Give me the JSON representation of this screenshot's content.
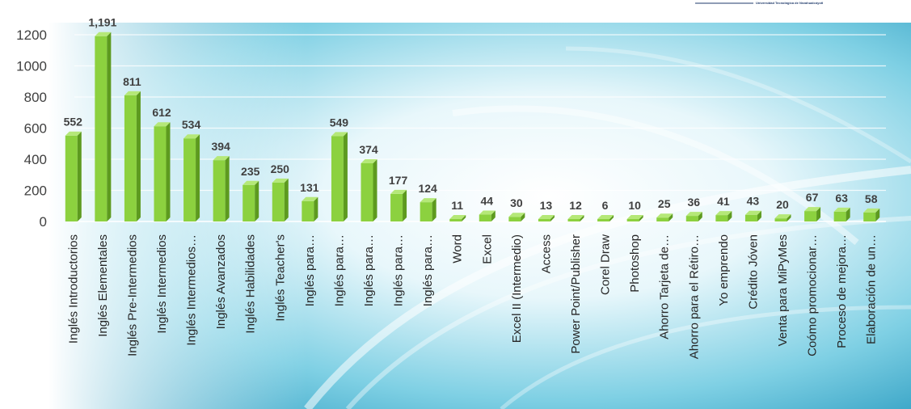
{
  "chart_data": {
    "type": "bar",
    "title": "",
    "xlabel": "",
    "ylabel": "",
    "ylim": [
      0,
      1200
    ],
    "yticks": [
      0,
      200,
      400,
      600,
      800,
      1000,
      1200
    ],
    "grid": true,
    "legend": "none",
    "bar_color": "#8cd13f",
    "categories": [
      "Inglés Introductorios",
      "Inglés Elementales",
      "Inglés Pre-Intermedios",
      "Inglés Intermedios",
      "Inglés Intermedios…",
      "Inglés Avanzados",
      "Inglés Habilidades",
      "Inglés Teacher's",
      "Inglés para…",
      "Inglés para…",
      "Inglés para…",
      "Inglés para…",
      "Inglés para…",
      "Word",
      "Excel",
      "Excel II (Intermedio)",
      "Access",
      "Power Point/Publisher",
      "Corel Draw",
      "Photoshop",
      "Ahorro Tarjeta de…",
      "Ahorro para el Rétiro…",
      "Yo emprendo",
      "Crédito Jóven",
      "Venta para MiPyMes",
      "Coómo promocionar…",
      "Proceso de mejora…",
      "Elaboración de un…"
    ],
    "values": [
      552,
      1191,
      811,
      612,
      534,
      394,
      235,
      250,
      131,
      549,
      374,
      177,
      124,
      11,
      44,
      30,
      13,
      12,
      6,
      10,
      25,
      36,
      41,
      43,
      20,
      67,
      63,
      58
    ],
    "value_labels": [
      "552",
      "1,191",
      "811",
      "612",
      "534",
      "394",
      "235",
      "250",
      "131",
      "549",
      "374",
      "177",
      "124",
      "11",
      "44",
      "30",
      "13",
      "12",
      "6",
      "10",
      "25",
      "36",
      "41",
      "43",
      "20",
      "67",
      "63",
      "58"
    ]
  },
  "logo": {
    "text": "Universidad Tecnológica de Nezahualcóyotl"
  }
}
